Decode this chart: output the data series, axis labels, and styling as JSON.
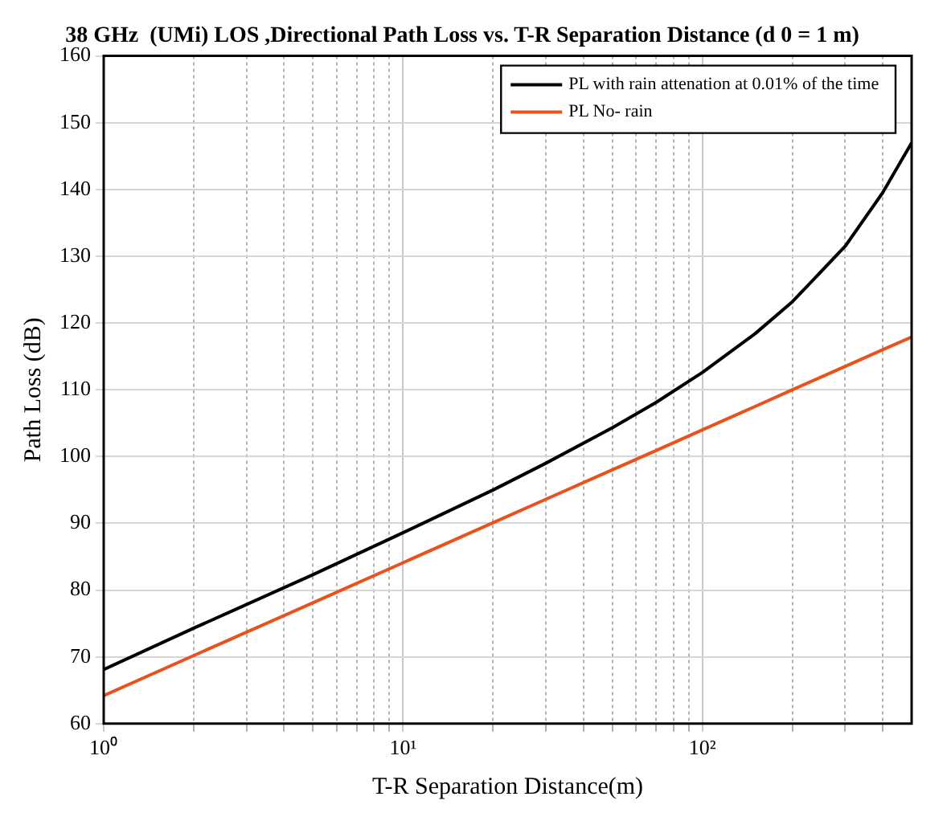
{
  "chart_data": {
    "type": "line",
    "title": "38 GHz  (UMi) LOS ,Directional Path Loss vs. T-R Separation Distance (d 0 = 1 m)",
    "xlabel": "T-R Separation Distance(m)",
    "ylabel": "Path Loss (dB)",
    "log": "x",
    "grid": true,
    "legend": "top right",
    "marker": "none",
    "line_style": "solid",
    "xlim": [
      1,
      500
    ],
    "xticks": [
      {
        "value": 1,
        "label": "10⁰"
      },
      {
        "value": 2,
        "label": null
      },
      {
        "value": 3,
        "label": null
      },
      {
        "value": 4,
        "label": null
      },
      {
        "value": 5,
        "label": null
      },
      {
        "value": 6,
        "label": null
      },
      {
        "value": 7,
        "label": null
      },
      {
        "value": 8,
        "label": null
      },
      {
        "value": 9,
        "label": null
      },
      {
        "value": 10,
        "label": "10¹"
      },
      {
        "value": 20,
        "label": null
      },
      {
        "value": 30,
        "label": null
      },
      {
        "value": 40,
        "label": null
      },
      {
        "value": 50,
        "label": null
      },
      {
        "value": 60,
        "label": null
      },
      {
        "value": 70,
        "label": null
      },
      {
        "value": 80,
        "label": null
      },
      {
        "value": 90,
        "label": null
      },
      {
        "value": 100,
        "label": "10²"
      },
      {
        "value": 200,
        "label": null
      },
      {
        "value": 300,
        "label": null
      },
      {
        "value": 400,
        "label": null
      }
    ],
    "ylim": [
      60,
      160
    ],
    "yticks": [
      60,
      70,
      80,
      90,
      100,
      110,
      120,
      130,
      140,
      150,
      160
    ],
    "x": [
      1,
      2,
      5,
      10,
      20,
      30,
      50,
      70,
      100,
      150,
      200,
      300,
      400,
      500
    ],
    "series": [
      {
        "name": "PL with rain attenation at 0.01% of the time",
        "color": "#000000",
        "values": [
          68.1,
          74.3,
          82.3,
          88.6,
          95.0,
          99.0,
          104.3,
          108.1,
          112.6,
          118.4,
          123.2,
          131.5,
          139.5,
          147
        ]
      },
      {
        "name": "PL No- rain",
        "color": "#e8521f",
        "values": [
          64.2,
          70.2,
          78.1,
          84.1,
          90.1,
          93.6,
          98.0,
          100.9,
          104.0,
          107.5,
          110.0,
          113.5,
          116.0,
          117.9
        ]
      }
    ]
  }
}
